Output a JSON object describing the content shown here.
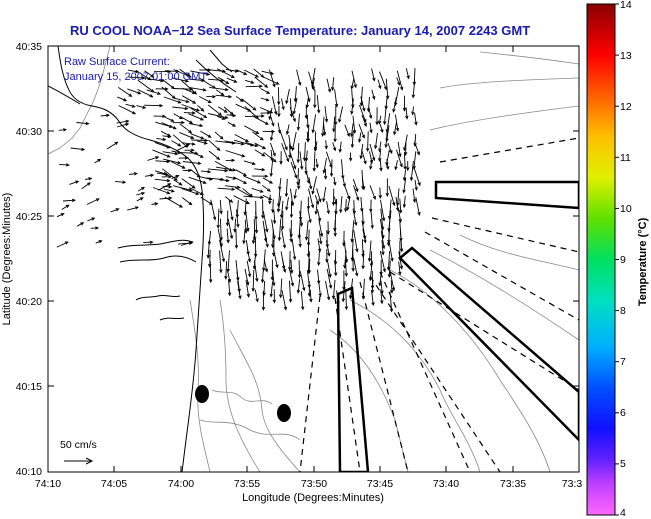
{
  "title": "RU COOL  NOAA−12  Sea Surface Temperature:  January 14, 2007 2243 GMT",
  "annotation": {
    "line1": "Raw Surface Current:",
    "line2": "January 15, 2007 01:00 GMT"
  },
  "scale_label": "50 cm/s",
  "axes": {
    "xlabel": "Longitude (Degrees:Minutes)",
    "ylabel": "Latitude (Degrees:Minutes)",
    "xticks": [
      "74:10",
      "74:05",
      "74:00",
      "73:55",
      "73:50",
      "73:45",
      "73:40",
      "73:35",
      "73:3"
    ],
    "yticks": [
      "40:35",
      "40:30",
      "40:25",
      "40:20",
      "40:15",
      "40:10"
    ]
  },
  "colorbar": {
    "label": "Temperature (°C)",
    "ticks": [
      "14",
      "13",
      "12",
      "11",
      "10",
      "9",
      "8",
      "7",
      "6",
      "5",
      "4"
    ],
    "min": 4,
    "max": 14
  },
  "colors": {
    "title": "#1b1bb0",
    "land_outline": "#000000",
    "bathymetry": "#8a8a8a"
  }
}
